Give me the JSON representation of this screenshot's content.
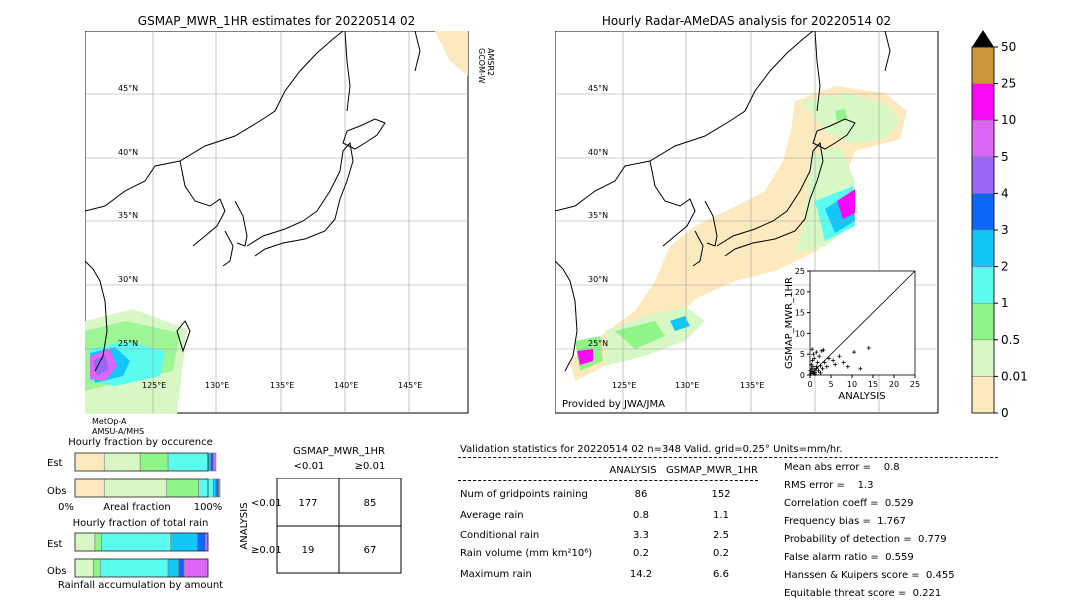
{
  "left_map": {
    "title": "GSMAP_MWR_1HR estimates for 20220514 02",
    "lat_labels": [
      "45°N",
      "40°N",
      "35°N",
      "30°N",
      "25°N"
    ],
    "lon_labels": [
      "125°E",
      "130°E",
      "135°E",
      "140°E",
      "145°E"
    ],
    "side_label_1": "GCOM-W",
    "side_label_2": "AMSR2",
    "bottom_label_1": "MetOp-A",
    "bottom_label_2": "AMSU-A/MHS"
  },
  "right_map": {
    "title": "Hourly Radar-AMeDAS analysis for 20220514 02",
    "lat_labels": [
      "45°N",
      "40°N",
      "35°N",
      "30°N",
      "25°N"
    ],
    "lon_labels": [
      "125°E",
      "130°E",
      "135°E"
    ],
    "credit": "Provided by JWA/JMA"
  },
  "colorbar": {
    "levels": [
      "0",
      "0.01",
      "0.5",
      "1",
      "2",
      "3",
      "4",
      "5",
      "10",
      "25",
      "50"
    ],
    "colors": [
      "#fde9be",
      "#d7f8c4",
      "#8ff589",
      "#5cfbef",
      "#10c7f8",
      "#0a67f7",
      "#9a66f4",
      "#de66f4",
      "#f90af6",
      "#c99639"
    ],
    "extend_color": "#000000"
  },
  "chart_data": [
    {
      "type": "scatter",
      "xlabel": "ANALYSIS",
      "ylabel": "GSMAP_MWR_1HR",
      "xlim": [
        0,
        25
      ],
      "ylim": [
        0,
        25
      ],
      "xticks": [
        "0",
        "5",
        "10",
        "15",
        "20",
        "25"
      ],
      "yticks": [
        "0",
        "5",
        "10",
        "15",
        "20",
        "25"
      ],
      "diagonal": true,
      "points": [
        [
          0.2,
          0.3
        ],
        [
          0.5,
          0.8
        ],
        [
          0.8,
          0.4
        ],
        [
          1.0,
          1.2
        ],
        [
          1.2,
          0.6
        ],
        [
          0.4,
          1.5
        ],
        [
          1.5,
          2.0
        ],
        [
          2.0,
          1.0
        ],
        [
          0.3,
          2.5
        ],
        [
          1.8,
          3.0
        ],
        [
          2.5,
          2.2
        ],
        [
          0.6,
          3.5
        ],
        [
          3.0,
          1.5
        ],
        [
          1.0,
          4.0
        ],
        [
          2.2,
          4.5
        ],
        [
          0.8,
          5.0
        ],
        [
          3.5,
          3.0
        ],
        [
          4.0,
          2.0
        ],
        [
          1.5,
          5.5
        ],
        [
          2.8,
          5.8
        ],
        [
          0.5,
          6.2
        ],
        [
          4.5,
          4.0
        ],
        [
          5.5,
          3.5
        ],
        [
          6.0,
          2.5
        ],
        [
          3.2,
          6.0
        ],
        [
          7.0,
          4.5
        ],
        [
          8.0,
          3.0
        ],
        [
          9.0,
          2.0
        ],
        [
          10.5,
          5.5
        ],
        [
          14.0,
          6.5
        ],
        [
          12.0,
          1.5
        ],
        [
          1.2,
          0.2
        ],
        [
          0.1,
          1.0
        ],
        [
          2.5,
          0.5
        ],
        [
          0.7,
          2.0
        ],
        [
          1.6,
          1.6
        ]
      ]
    },
    {
      "type": "bar",
      "title": "Hourly fraction by occurence",
      "categories": [
        "Est",
        "Obs"
      ],
      "xlim": [
        0,
        1
      ],
      "xtick_labels": [
        "0%",
        "100%"
      ],
      "xlabel": "Areal fraction",
      "segments": [
        {
          "category": "Est",
          "fractions": [
            0.22,
            0.27,
            0.21,
            0.3,
            0.02,
            0.02,
            0.02
          ]
        },
        {
          "category": "Obs",
          "fractions": [
            0.22,
            0.47,
            0.24,
            0.11,
            0.02,
            0.02,
            0.01
          ]
        }
      ],
      "segment_colors": [
        "#fde9be",
        "#d7f8c4",
        "#8ff589",
        "#5cfbef",
        "#10c7f8",
        "#0a67f7",
        "#de66f4"
      ]
    },
    {
      "type": "bar",
      "title": "Hourly fraction of total rain",
      "categories": [
        "Est",
        "Obs"
      ],
      "xlim": [
        0,
        1
      ],
      "xlabel": "Rainfall accumulation by amount",
      "segments": [
        {
          "category": "Est",
          "fractions": [
            0.0,
            0.15,
            0.05,
            0.52,
            0.2,
            0.06,
            0.02
          ]
        },
        {
          "category": "Obs",
          "fractions": [
            0.0,
            0.14,
            0.05,
            0.51,
            0.08,
            0.04,
            0.18
          ]
        }
      ],
      "segment_colors": [
        "#fde9be",
        "#d7f8c4",
        "#8ff589",
        "#5cfbef",
        "#10c7f8",
        "#0a67f7",
        "#de66f4"
      ]
    },
    {
      "type": "table",
      "title": "GSMAP_MWR_1HR",
      "col_headers": [
        "<0.01",
        "≥0.01"
      ],
      "row_axis_label": "ANALYSIS",
      "row_headers": [
        "<0.01",
        "≥0.01"
      ],
      "cells": [
        [
          "177",
          "85"
        ],
        [
          "19",
          "67"
        ]
      ]
    }
  ],
  "validation": {
    "title": "Validation statistics for 20220514 02  n=348 Valid. grid=0.25° Units=mm/hr.",
    "col_analysis": "ANALYSIS",
    "col_gsmap": "GSMAP_MWR_1HR",
    "rows": [
      {
        "label": "Num of gridpoints raining",
        "analysis": "86",
        "gsmap": "152"
      },
      {
        "label": "Average rain",
        "analysis": "0.8",
        "gsmap": "1.1"
      },
      {
        "label": "Conditional rain",
        "analysis": "3.3",
        "gsmap": "2.5"
      },
      {
        "label": "Rain volume (mm km²10⁶)",
        "analysis": "0.2",
        "gsmap": "0.2"
      },
      {
        "label": "Maximum rain",
        "analysis": "14.2",
        "gsmap": "6.6"
      }
    ],
    "scores": [
      "Mean abs error =    0.8",
      "RMS error =    1.3",
      "Correlation coeff =  0.529",
      "Frequency bias =  1.767",
      "Probability of detection =  0.779",
      "False alarm ratio =  0.559",
      "Hanssen & Kuipers score =  0.455",
      "Equitable threat score =  0.221"
    ]
  }
}
